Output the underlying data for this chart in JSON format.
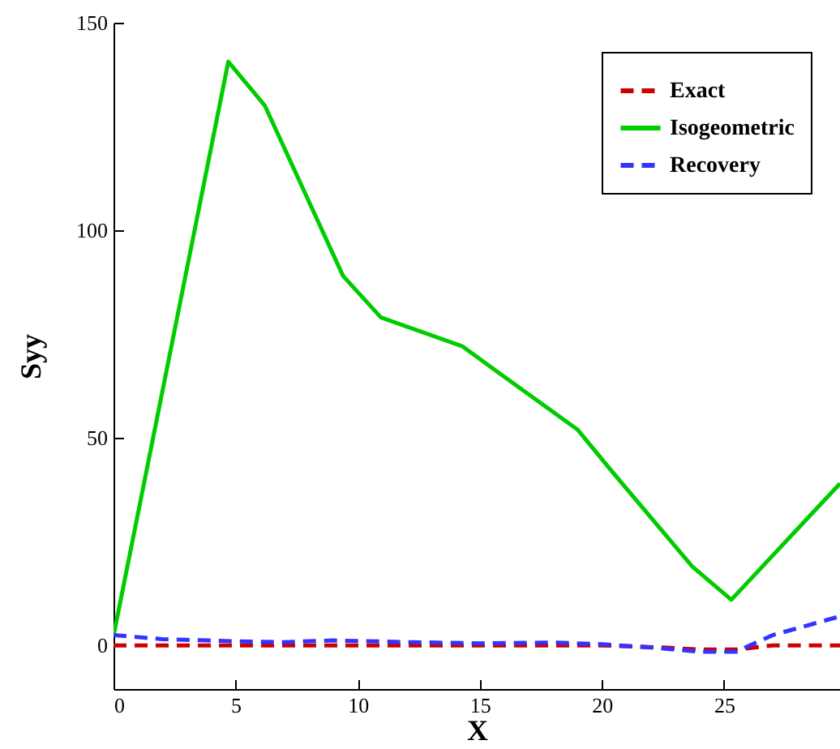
{
  "chart_data": {
    "type": "line",
    "xlabel": "X",
    "ylabel": "Syy",
    "xlim": [
      0,
      29.75
    ],
    "ylim": [
      -10.5,
      150
    ],
    "xticks": [
      0,
      5,
      10,
      15,
      20,
      25
    ],
    "yticks": [
      0,
      50,
      100,
      150
    ],
    "grid": false,
    "legend": "top right",
    "marker": "none",
    "series": [
      {
        "name": "Exact",
        "color": "#cc0000",
        "line_style": "dashed",
        "x": [
          0,
          5,
          10,
          15,
          20,
          22.5,
          24,
          25.5,
          27,
          29.75
        ],
        "values": [
          0,
          0,
          0,
          0,
          0,
          -0.5,
          -1,
          -1,
          0,
          0
        ]
      },
      {
        "name": "Isogeometric",
        "color": "#00cc00",
        "line_style": "solid",
        "x": [
          0,
          4.7,
          6.2,
          9.4,
          10.95,
          14.3,
          15.7,
          19,
          20.4,
          23.7,
          25.3,
          29.75
        ],
        "values": [
          2.3,
          140.6,
          130,
          89,
          79,
          72,
          66,
          52,
          42,
          19,
          11,
          39
        ]
      },
      {
        "name": "Recovery",
        "color": "#3333ff",
        "line_style": "dashed",
        "x": [
          0,
          2,
          5,
          7,
          9,
          12,
          15,
          18,
          20,
          22,
          24,
          25.5,
          27,
          29.75
        ],
        "values": [
          2.5,
          1.5,
          1,
          0.8,
          1.2,
          0.8,
          0.5,
          0.7,
          0.3,
          -0.5,
          -1.5,
          -1.5,
          2.5,
          7
        ]
      }
    ]
  }
}
